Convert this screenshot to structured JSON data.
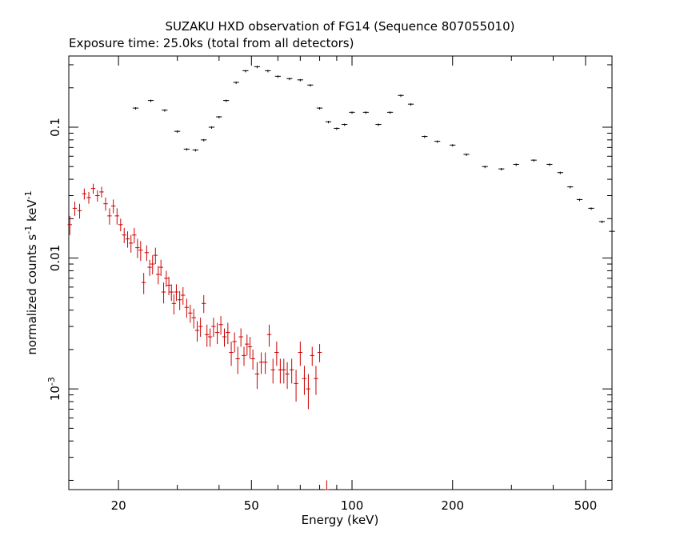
{
  "chart_data": {
    "type": "scatter",
    "title": "SUZAKU HXD observation of FG14 (Sequence 807055010)",
    "subtitle": "Exposure time: 25.0ks (total from all detectors)",
    "xlabel": "Energy (keV)",
    "ylabel_parts": [
      "normalized counts s",
      "-1",
      " keV",
      "-1"
    ],
    "x_scale": "log",
    "y_scale": "log",
    "xlim": [
      14.2,
      600
    ],
    "ylim": [
      0.00017,
      0.35
    ],
    "x_ticks": [
      {
        "value": 20,
        "label": "20"
      },
      {
        "value": 50,
        "label": "50"
      },
      {
        "value": 100,
        "label": "100"
      },
      {
        "value": 200,
        "label": "200"
      },
      {
        "value": 500,
        "label": "500"
      }
    ],
    "y_ticks": [
      {
        "value": 0.1,
        "label": "0.1"
      },
      {
        "value": 0.01,
        "label": "0.01"
      },
      {
        "value": 0.001,
        "label_base": "10",
        "label_exp": "-3"
      }
    ],
    "grid": false,
    "legend": "none",
    "colors": {
      "series1": "#000000",
      "series2": "#cc0000",
      "axes": "#000000"
    },
    "series": [
      {
        "color": "#000000",
        "x_err_frac": 0.02,
        "points": [
          [
            22.5,
            0.14
          ],
          [
            25,
            0.16
          ],
          [
            27.5,
            0.135
          ],
          [
            30,
            0.093
          ],
          [
            32,
            0.068
          ],
          [
            34,
            0.067
          ],
          [
            36,
            0.08
          ],
          [
            38,
            0.1
          ],
          [
            40,
            0.12
          ],
          [
            42,
            0.16
          ],
          [
            45,
            0.22
          ],
          [
            48,
            0.27
          ],
          [
            52,
            0.29
          ],
          [
            56,
            0.27
          ],
          [
            60,
            0.245
          ],
          [
            65,
            0.235
          ],
          [
            70,
            0.23
          ],
          [
            75,
            0.21
          ],
          [
            80,
            0.14
          ],
          [
            85,
            0.11
          ],
          [
            90,
            0.098
          ],
          [
            95,
            0.105
          ],
          [
            100,
            0.13
          ],
          [
            110,
            0.13
          ],
          [
            120,
            0.105
          ],
          [
            130,
            0.13
          ],
          [
            140,
            0.175
          ],
          [
            150,
            0.15
          ],
          [
            165,
            0.085
          ],
          [
            180,
            0.078
          ],
          [
            200,
            0.073
          ],
          [
            220,
            0.062
          ],
          [
            250,
            0.05
          ],
          [
            280,
            0.048
          ],
          [
            310,
            0.052
          ],
          [
            350,
            0.056
          ],
          [
            390,
            0.052
          ],
          [
            420,
            0.045
          ],
          [
            450,
            0.035
          ],
          [
            480,
            0.028
          ],
          [
            520,
            0.024
          ],
          [
            560,
            0.019
          ],
          [
            600,
            0.016
          ]
        ]
      },
      {
        "color": "#cc0000",
        "x_err_frac": 0.015,
        "points": [
          [
            14.3,
            0.018,
            0.003
          ],
          [
            14.8,
            0.024,
            0.003
          ],
          [
            15.3,
            0.023,
            0.003
          ],
          [
            15.8,
            0.031,
            0.003
          ],
          [
            16.3,
            0.029,
            0.003
          ],
          [
            16.8,
            0.034,
            0.003
          ],
          [
            17.3,
            0.03,
            0.003
          ],
          [
            17.8,
            0.032,
            0.003
          ],
          [
            18.3,
            0.026,
            0.003
          ],
          [
            18.8,
            0.021,
            0.003
          ],
          [
            19.3,
            0.025,
            0.003
          ],
          [
            19.8,
            0.021,
            0.003
          ],
          [
            20.3,
            0.018,
            0.002
          ],
          [
            20.8,
            0.015,
            0.002
          ],
          [
            21.3,
            0.014,
            0.002
          ],
          [
            21.8,
            0.013,
            0.002
          ],
          [
            22.3,
            0.015,
            0.002
          ],
          [
            22.8,
            0.012,
            0.002
          ],
          [
            23.3,
            0.0115,
            0.002
          ],
          [
            23.8,
            0.0065,
            0.0012
          ],
          [
            24.3,
            0.011,
            0.0015
          ],
          [
            24.8,
            0.0085,
            0.0012
          ],
          [
            25.3,
            0.009,
            0.0015
          ],
          [
            25.8,
            0.0105,
            0.0015
          ],
          [
            26.3,
            0.0075,
            0.0012
          ],
          [
            26.8,
            0.0085,
            0.0012
          ],
          [
            27.3,
            0.0055,
            0.001
          ],
          [
            27.8,
            0.007,
            0.001
          ],
          [
            28.3,
            0.0062,
            0.001
          ],
          [
            28.8,
            0.0055,
            0.0008
          ],
          [
            29.3,
            0.0045,
            0.0008
          ],
          [
            29.8,
            0.0055,
            0.0008
          ],
          [
            30.5,
            0.0048,
            0.0008
          ],
          [
            31.2,
            0.0052,
            0.0008
          ],
          [
            32.0,
            0.0042,
            0.0007
          ],
          [
            32.8,
            0.0038,
            0.0006
          ],
          [
            33.6,
            0.0035,
            0.0006
          ],
          [
            34.4,
            0.0028,
            0.0005
          ],
          [
            35.2,
            0.003,
            0.0005
          ],
          [
            36.0,
            0.0045,
            0.0007
          ],
          [
            36.8,
            0.0026,
            0.0005
          ],
          [
            37.6,
            0.0025,
            0.0004
          ],
          [
            38.5,
            0.003,
            0.0005
          ],
          [
            39.5,
            0.0027,
            0.0005
          ],
          [
            40.5,
            0.0031,
            0.0005
          ],
          [
            41.5,
            0.0025,
            0.0004
          ],
          [
            42.5,
            0.0027,
            0.0005
          ],
          [
            43.5,
            0.0019,
            0.0004
          ],
          [
            44.5,
            0.0023,
            0.0004
          ],
          [
            45.5,
            0.0017,
            0.0004
          ],
          [
            46.5,
            0.0025,
            0.0004
          ],
          [
            47.5,
            0.0018,
            0.0003
          ],
          [
            48.5,
            0.0022,
            0.0004
          ],
          [
            49.5,
            0.0021,
            0.0004
          ],
          [
            50.5,
            0.0017,
            0.0003
          ],
          [
            52.0,
            0.0013,
            0.0003
          ],
          [
            53.5,
            0.0016,
            0.0003
          ],
          [
            55.0,
            0.0016,
            0.0003
          ],
          [
            56.5,
            0.0026,
            0.0005
          ],
          [
            58.0,
            0.0014,
            0.0003
          ],
          [
            59.5,
            0.0019,
            0.0004
          ],
          [
            61.0,
            0.0014,
            0.0003
          ],
          [
            62.5,
            0.0014,
            0.0003
          ],
          [
            64.0,
            0.0013,
            0.0003
          ],
          [
            66.0,
            0.0014,
            0.0003
          ],
          [
            68.0,
            0.0011,
            0.0003
          ],
          [
            70.0,
            0.0019,
            0.0004
          ],
          [
            72.0,
            0.0012,
            0.0003
          ],
          [
            74.0,
            0.001,
            0.0003
          ],
          [
            76.0,
            0.0018,
            0.0003
          ],
          [
            78.0,
            0.0012,
            0.0003
          ],
          [
            80.0,
            0.0019,
            0.0003
          ],
          [
            84.0,
            0.00017,
            3e-05
          ]
        ]
      }
    ]
  }
}
